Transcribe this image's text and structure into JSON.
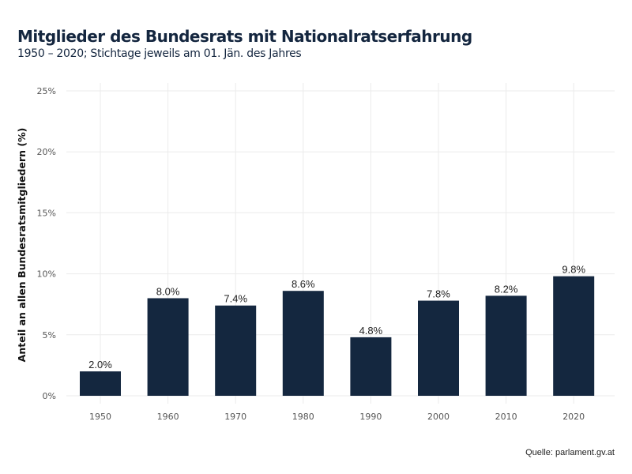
{
  "chart_data": {
    "type": "bar",
    "title": "Mitglieder des Bundesrats mit Nationalratserfahrung",
    "subtitle": "1950 – 2020; Stichtage jeweils am 01. Jän. des Jahres",
    "xlabel": "",
    "ylabel": "Anteil an allen Bundesratsmitgliedern (%)",
    "categories": [
      "1950",
      "1960",
      "1970",
      "1980",
      "1990",
      "2000",
      "2010",
      "2020"
    ],
    "values": [
      2.0,
      8.0,
      7.4,
      8.6,
      4.8,
      7.8,
      8.2,
      9.8
    ],
    "data_labels": [
      "2.0%",
      "8.0%",
      "7.4%",
      "8.6%",
      "4.8%",
      "7.8%",
      "8.2%",
      "9.8%"
    ],
    "ylim": [
      0,
      25
    ],
    "yticks": [
      0,
      5,
      10,
      15,
      20,
      25
    ],
    "ytick_labels": [
      "0%",
      "5%",
      "10%",
      "15%",
      "20%",
      "25%"
    ],
    "grid": true,
    "bar_color": "#14273f",
    "source": "Quelle: parlament.gv.at"
  }
}
